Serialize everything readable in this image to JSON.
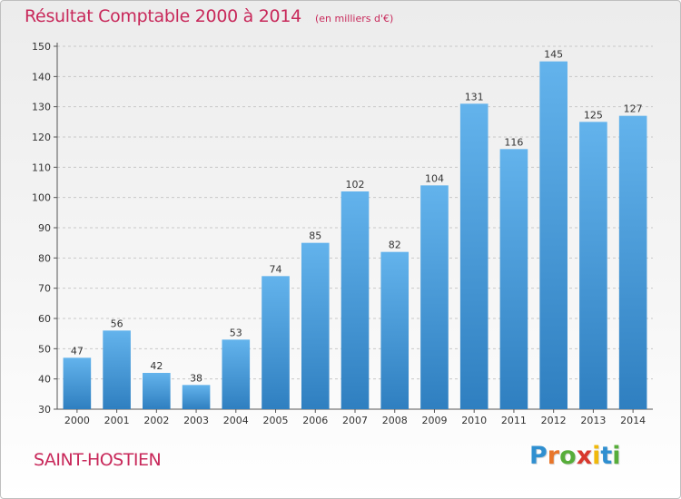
{
  "header": {
    "title": "Résultat Comptable 2000 à 2014",
    "subtitle": "(en milliers d'€)"
  },
  "footer": {
    "commune": "SAINT-HOSTIEN",
    "brand": "Proxiti",
    "brand_letters": [
      "P",
      "r",
      "o",
      "x",
      "i",
      "t",
      "i"
    ],
    "brand_colors": [
      "#2f8fd0",
      "#e8762b",
      "#57ad3a",
      "#d8382e",
      "#f0b90b",
      "#2f8fd0",
      "#57ad3a"
    ]
  },
  "chart_data": {
    "type": "bar",
    "categories": [
      "2000",
      "2001",
      "2002",
      "2003",
      "2004",
      "2005",
      "2006",
      "2007",
      "2008",
      "2009",
      "2010",
      "2011",
      "2012",
      "2013",
      "2014"
    ],
    "values": [
      47,
      56,
      42,
      38,
      53,
      74,
      85,
      102,
      82,
      104,
      131,
      116,
      145,
      125,
      127
    ],
    "ylim": [
      30,
      150
    ],
    "yticks": [
      30,
      40,
      50,
      60,
      70,
      80,
      90,
      100,
      110,
      120,
      130,
      140,
      150
    ],
    "grid": true,
    "bar_color_top": "#63b3ec",
    "bar_color_bottom": "#2f7fc0",
    "title_color": "#c8285a"
  }
}
